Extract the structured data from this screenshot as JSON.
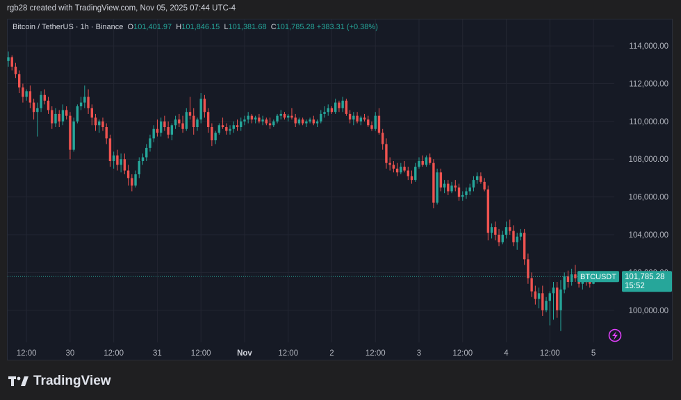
{
  "header": {
    "text": "rgb28 created with TradingView.com, Nov 05, 2025 07:44 UTC-4"
  },
  "legend": {
    "symbol": "Bitcoin / TetherUS · 1h · Binance",
    "o_label": "O",
    "o": "101,401.97",
    "h_label": "H",
    "h": "101,846.15",
    "l_label": "L",
    "l": "101,381.68",
    "c_label": "C",
    "c": "101,785.28",
    "change": "+383.31 (+0.38%)"
  },
  "price_tag": {
    "symbol": "BTCUSDT",
    "price": "101,785.28",
    "countdown": "15:52"
  },
  "brand": {
    "name": "TradingView"
  },
  "icons": {
    "logo": "tradingview-logo-icon",
    "lightning": "lightning-icon"
  },
  "colors": {
    "up": "#26a69a",
    "down": "#ef5350",
    "background": "#161a25",
    "grid": "#232632",
    "text": "#b2b5be",
    "lightning": "#e040fb"
  },
  "chart_data": {
    "type": "candlestick",
    "title": "Bitcoin / TetherUS · 1h · Binance",
    "ylim": [
      98300,
      115400
    ],
    "y_ticks": [
      {
        "label": "114,000.00",
        "value": 114000
      },
      {
        "label": "112,000.00",
        "value": 112000
      },
      {
        "label": "110,000.00",
        "value": 110000
      },
      {
        "label": "108,000.00",
        "value": 108000
      },
      {
        "label": "106,000.00",
        "value": 106000
      },
      {
        "label": "104,000.00",
        "value": 104000
      },
      {
        "label": "102,000.00",
        "value": 102000
      },
      {
        "label": "100,000.00",
        "value": 100000
      }
    ],
    "x_ticks": [
      {
        "label": "12:00",
        "index": 5,
        "bold": false
      },
      {
        "label": "30",
        "index": 17,
        "bold": false
      },
      {
        "label": "12:00",
        "index": 29,
        "bold": false
      },
      {
        "label": "31",
        "index": 41,
        "bold": false
      },
      {
        "label": "12:00",
        "index": 53,
        "bold": false
      },
      {
        "label": "Nov",
        "index": 65,
        "bold": true
      },
      {
        "label": "12:00",
        "index": 77,
        "bold": false
      },
      {
        "label": "2",
        "index": 89,
        "bold": false
      },
      {
        "label": "12:00",
        "index": 101,
        "bold": false
      },
      {
        "label": "3",
        "index": 113,
        "bold": false
      },
      {
        "label": "12:00",
        "index": 125,
        "bold": false
      },
      {
        "label": "4",
        "index": 137,
        "bold": false
      },
      {
        "label": "12:00",
        "index": 149,
        "bold": false
      },
      {
        "label": "5",
        "index": 161,
        "bold": false
      }
    ],
    "last_price": 101785.28,
    "candles": [
      [
        113200,
        113700,
        112900,
        113400
      ],
      [
        113400,
        113500,
        112700,
        112900
      ],
      [
        112900,
        113100,
        112300,
        112500
      ],
      [
        112500,
        112700,
        111500,
        111800
      ],
      [
        111800,
        112000,
        111000,
        111300
      ],
      [
        111300,
        111700,
        111100,
        111600
      ],
      [
        111600,
        111900,
        110700,
        111000
      ],
      [
        111000,
        111200,
        110100,
        110500
      ],
      [
        110500,
        111000,
        109200,
        110700
      ],
      [
        110700,
        111600,
        110500,
        111400
      ],
      [
        111400,
        111700,
        110900,
        111100
      ],
      [
        111100,
        111300,
        110400,
        110600
      ],
      [
        110600,
        110800,
        109600,
        109900
      ],
      [
        109900,
        110700,
        109700,
        110400
      ],
      [
        110400,
        110600,
        109700,
        110000
      ],
      [
        110000,
        110900,
        109800,
        110600
      ],
      [
        110600,
        110800,
        110100,
        110300
      ],
      [
        110300,
        110500,
        108000,
        108500
      ],
      [
        108500,
        110200,
        108400,
        110000
      ],
      [
        110000,
        110900,
        109900,
        110800
      ],
      [
        110800,
        111300,
        110600,
        111000
      ],
      [
        111000,
        111900,
        110700,
        111300
      ],
      [
        111300,
        111700,
        110400,
        110700
      ],
      [
        110700,
        110900,
        109800,
        110200
      ],
      [
        110200,
        110400,
        109500,
        109800
      ],
      [
        109800,
        110100,
        109400,
        110000
      ],
      [
        110000,
        110200,
        109500,
        109700
      ],
      [
        109700,
        109900,
        108800,
        109100
      ],
      [
        109100,
        109300,
        107600,
        107900
      ],
      [
        107900,
        108400,
        107500,
        108200
      ],
      [
        108200,
        108500,
        107400,
        107700
      ],
      [
        107700,
        108300,
        107300,
        108000
      ],
      [
        108000,
        108300,
        107200,
        107400
      ],
      [
        107400,
        107700,
        106600,
        107000
      ],
      [
        107000,
        107200,
        106300,
        106600
      ],
      [
        106600,
        107400,
        106500,
        107200
      ],
      [
        107200,
        108100,
        107000,
        107900
      ],
      [
        107900,
        108300,
        107700,
        108100
      ],
      [
        108100,
        108800,
        107900,
        108600
      ],
      [
        108600,
        109300,
        108400,
        109100
      ],
      [
        109100,
        109800,
        108900,
        109600
      ],
      [
        109600,
        110100,
        109200,
        109400
      ],
      [
        109400,
        110200,
        109200,
        110000
      ],
      [
        110000,
        110300,
        109500,
        109700
      ],
      [
        109700,
        110000,
        109100,
        109300
      ],
      [
        109300,
        109900,
        109000,
        109800
      ],
      [
        109800,
        110300,
        109600,
        110100
      ],
      [
        110100,
        110400,
        109700,
        109900
      ],
      [
        109900,
        110300,
        109400,
        109600
      ],
      [
        109600,
        110700,
        109500,
        110500
      ],
      [
        110500,
        111300,
        110100,
        110300
      ],
      [
        110300,
        110700,
        109300,
        109700
      ],
      [
        109700,
        110200,
        109500,
        110100
      ],
      [
        110100,
        111500,
        109900,
        111200
      ],
      [
        111200,
        111400,
        110200,
        110500
      ],
      [
        110500,
        110700,
        109400,
        109700
      ],
      [
        109700,
        109900,
        108700,
        109000
      ],
      [
        109000,
        109500,
        108800,
        109400
      ],
      [
        109400,
        109900,
        109300,
        109800
      ],
      [
        109800,
        110200,
        109600,
        109700
      ],
      [
        109700,
        109900,
        109300,
        109500
      ],
      [
        109500,
        109800,
        109300,
        109600
      ],
      [
        109600,
        110000,
        109400,
        109800
      ],
      [
        109800,
        110100,
        109500,
        109700
      ],
      [
        109700,
        110200,
        109500,
        110000
      ],
      [
        110000,
        110300,
        109800,
        110100
      ],
      [
        110100,
        110500,
        109900,
        110300
      ],
      [
        110300,
        110400,
        109900,
        110100
      ],
      [
        110100,
        110300,
        109900,
        110200
      ],
      [
        110200,
        110400,
        109900,
        110000
      ],
      [
        110000,
        110300,
        109800,
        110100
      ],
      [
        110100,
        110200,
        109800,
        109900
      ],
      [
        109900,
        110200,
        109600,
        109800
      ],
      [
        109800,
        110100,
        109700,
        110000
      ],
      [
        110000,
        110400,
        109900,
        110300
      ],
      [
        110300,
        110600,
        110100,
        110400
      ],
      [
        110400,
        110500,
        110100,
        110200
      ],
      [
        110200,
        110400,
        110000,
        110300
      ],
      [
        110300,
        110700,
        110100,
        110200
      ],
      [
        110200,
        110400,
        109700,
        109900
      ],
      [
        109900,
        110200,
        109800,
        110100
      ],
      [
        110100,
        110200,
        109800,
        109900
      ],
      [
        109900,
        110100,
        109700,
        110000
      ],
      [
        110000,
        110200,
        109900,
        110100
      ],
      [
        110100,
        110300,
        109800,
        109900
      ],
      [
        109900,
        110100,
        109700,
        110000
      ],
      [
        110000,
        110600,
        109900,
        110400
      ],
      [
        110400,
        110800,
        110200,
        110500
      ],
      [
        110500,
        110900,
        110300,
        110700
      ],
      [
        110700,
        110800,
        110400,
        110500
      ],
      [
        110500,
        111200,
        110400,
        111000
      ],
      [
        111000,
        111100,
        110500,
        110700
      ],
      [
        110700,
        111300,
        110500,
        111100
      ],
      [
        111100,
        111200,
        110300,
        110400
      ],
      [
        110400,
        110600,
        109900,
        110100
      ],
      [
        110100,
        110500,
        109800,
        110300
      ],
      [
        110300,
        110500,
        109900,
        110000
      ],
      [
        110000,
        110300,
        109800,
        110200
      ],
      [
        110200,
        110400,
        110000,
        110100
      ],
      [
        110100,
        110300,
        109700,
        109800
      ],
      [
        109800,
        110000,
        109500,
        109600
      ],
      [
        109600,
        110500,
        109500,
        110300
      ],
      [
        110300,
        110700,
        109300,
        109400
      ],
      [
        109400,
        109600,
        108500,
        108800
      ],
      [
        108800,
        109100,
        107500,
        107800
      ],
      [
        107800,
        108100,
        107400,
        107700
      ],
      [
        107700,
        107900,
        107300,
        107500
      ],
      [
        107500,
        107800,
        107100,
        107300
      ],
      [
        107300,
        107800,
        107200,
        107600
      ],
      [
        107600,
        107900,
        107300,
        107400
      ],
      [
        107400,
        107600,
        106900,
        107100
      ],
      [
        107100,
        107400,
        106700,
        106900
      ],
      [
        106900,
        107800,
        106800,
        107600
      ],
      [
        107600,
        108100,
        107500,
        107900
      ],
      [
        107900,
        108200,
        107600,
        107700
      ],
      [
        107700,
        108200,
        107600,
        108100
      ],
      [
        108100,
        108300,
        107700,
        107800
      ],
      [
        107800,
        108000,
        105400,
        105700
      ],
      [
        105700,
        107500,
        105600,
        107300
      ],
      [
        107300,
        107500,
        106300,
        106500
      ],
      [
        106500,
        106900,
        106200,
        106700
      ],
      [
        106700,
        106900,
        106100,
        106300
      ],
      [
        106300,
        106800,
        106200,
        106600
      ],
      [
        106600,
        106900,
        106300,
        106500
      ],
      [
        106500,
        106700,
        105800,
        106000
      ],
      [
        106000,
        106300,
        105800,
        106100
      ],
      [
        106100,
        106500,
        105900,
        106300
      ],
      [
        106300,
        106700,
        106100,
        106500
      ],
      [
        106500,
        107100,
        106300,
        106900
      ],
      [
        106900,
        107300,
        106700,
        107100
      ],
      [
        107100,
        107300,
        106700,
        106800
      ],
      [
        106800,
        107000,
        106300,
        106400
      ],
      [
        106400,
        106600,
        103700,
        104100
      ],
      [
        104100,
        104600,
        103800,
        104400
      ],
      [
        104400,
        104700,
        103700,
        104000
      ],
      [
        104000,
        104300,
        103400,
        103600
      ],
      [
        103600,
        104200,
        103500,
        104000
      ],
      [
        104000,
        104700,
        103800,
        104400
      ],
      [
        104400,
        104800,
        104000,
        104200
      ],
      [
        104200,
        104500,
        103400,
        103600
      ],
      [
        103600,
        104100,
        103200,
        103900
      ],
      [
        103900,
        104300,
        103700,
        104100
      ],
      [
        104100,
        104300,
        102400,
        102700
      ],
      [
        102700,
        103000,
        101400,
        101700
      ],
      [
        101700,
        102000,
        100700,
        101000
      ],
      [
        101000,
        101300,
        100300,
        100600
      ],
      [
        100600,
        101200,
        100100,
        100900
      ],
      [
        100900,
        101300,
        99700,
        100000
      ],
      [
        100000,
        100700,
        99900,
        100500
      ],
      [
        100500,
        101000,
        99200,
        100900
      ],
      [
        100900,
        101500,
        99500,
        101200
      ],
      [
        101200,
        101500,
        99600,
        100000
      ],
      [
        100000,
        101600,
        98900,
        101100
      ],
      [
        101100,
        102000,
        100900,
        101800
      ],
      [
        101800,
        102100,
        101200,
        101500
      ],
      [
        101500,
        102200,
        101300,
        101900
      ],
      [
        101900,
        102400,
        101500,
        101700
      ],
      [
        101700,
        102000,
        101200,
        101400
      ],
      [
        101400,
        101800,
        101100,
        101700
      ],
      [
        101700,
        101900,
        101300,
        101500
      ],
      [
        101500,
        101700,
        101200,
        101400
      ],
      [
        101400,
        101850,
        101380,
        101785
      ]
    ]
  }
}
